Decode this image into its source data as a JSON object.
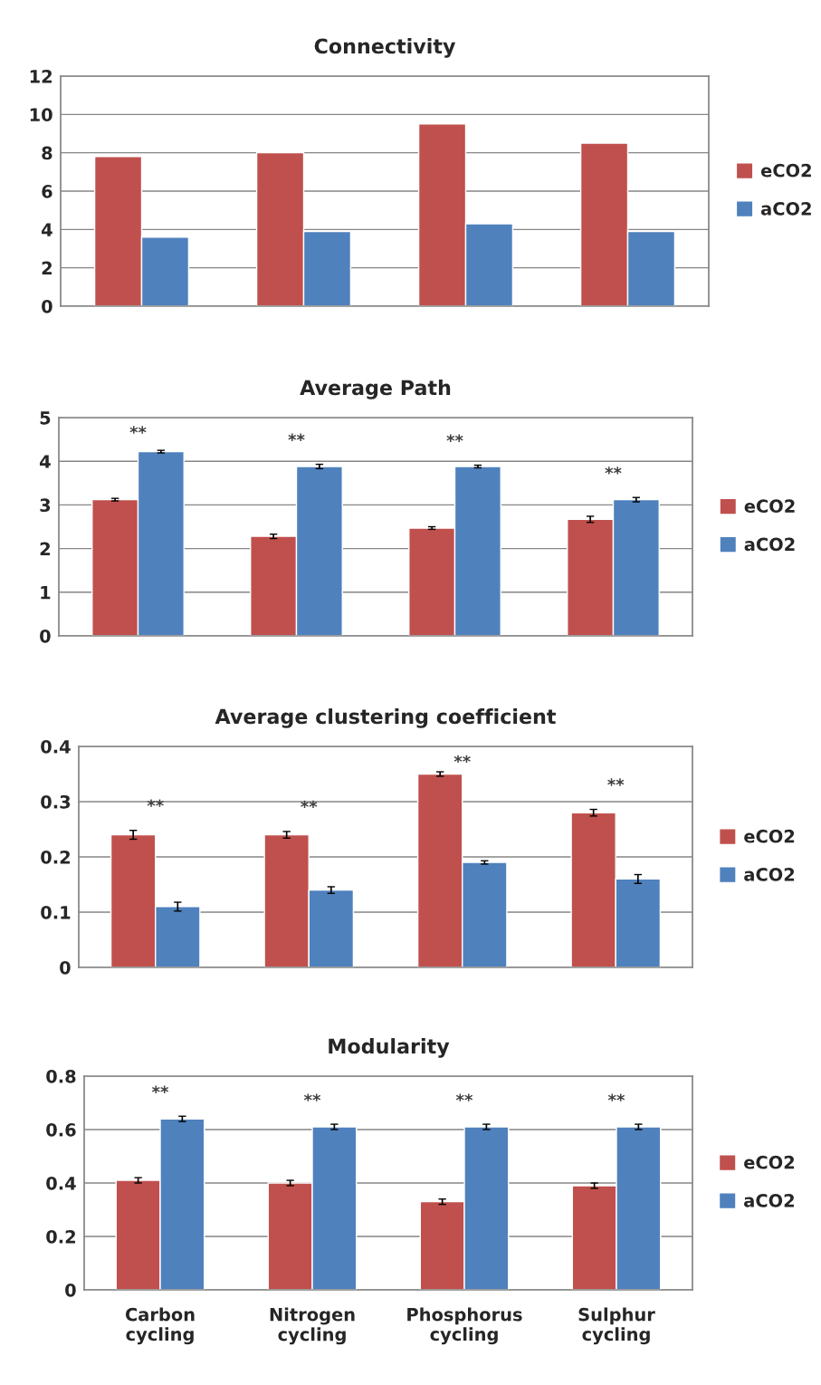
{
  "chart_data": [
    {
      "type": "bar",
      "title": "Connectivity",
      "categories": [
        null,
        null,
        null,
        null
      ],
      "series": [
        {
          "name": "eCO2",
          "color": "#c0504d",
          "values": [
            7.8,
            8.0,
            9.5,
            8.5
          ]
        },
        {
          "name": "aCO2",
          "color": "#4f81bd",
          "values": [
            3.6,
            3.9,
            4.3,
            3.9
          ]
        }
      ],
      "ylim": [
        0,
        12
      ],
      "yticks": [
        0,
        2,
        4,
        6,
        8,
        10,
        12
      ],
      "grid": "y",
      "legend": "right"
    },
    {
      "type": "bar",
      "title": "Average Path",
      "categories": [
        null,
        null,
        null,
        null
      ],
      "series": [
        {
          "name": "eCO2",
          "color": "#c0504d",
          "values": [
            3.12,
            2.28,
            2.47,
            2.67
          ],
          "errors": [
            0.03,
            0.05,
            0.03,
            0.07
          ]
        },
        {
          "name": "aCO2",
          "color": "#4f81bd",
          "values": [
            4.22,
            3.88,
            3.88,
            3.12
          ],
          "errors": [
            0.03,
            0.05,
            0.03,
            0.05
          ]
        }
      ],
      "ylim": [
        0,
        5
      ],
      "yticks": [
        0,
        1,
        2,
        3,
        4,
        5
      ],
      "grid": "y",
      "legend": "right",
      "annotations": [
        "**",
        "**",
        "**",
        "**"
      ]
    },
    {
      "type": "bar",
      "title": "Average clustering coefficient",
      "categories": [
        null,
        null,
        null,
        null
      ],
      "series": [
        {
          "name": "eCO2",
          "color": "#c0504d",
          "values": [
            0.24,
            0.24,
            0.35,
            0.28
          ],
          "errors": [
            0.008,
            0.006,
            0.004,
            0.006
          ]
        },
        {
          "name": "aCO2",
          "color": "#4f81bd",
          "values": [
            0.11,
            0.14,
            0.19,
            0.16
          ],
          "errors": [
            0.008,
            0.006,
            0.003,
            0.008
          ]
        }
      ],
      "ylim": [
        0,
        0.4
      ],
      "yticks": [
        0,
        0.1,
        0.2,
        0.3,
        0.4
      ],
      "grid": "y",
      "legend": "right",
      "annotations": [
        "**",
        "**",
        "**",
        "**"
      ]
    },
    {
      "type": "bar",
      "title": "Modularity",
      "categories": [
        "Carbon\ncycling",
        "Nitrogen\ncycling",
        "Phosphorus\ncycling",
        "Sulphur\ncycling"
      ],
      "series": [
        {
          "name": "eCO2",
          "color": "#c0504d",
          "values": [
            0.41,
            0.4,
            0.33,
            0.39
          ],
          "errors": [
            0.01,
            0.01,
            0.01,
            0.01
          ]
        },
        {
          "name": "aCO2",
          "color": "#4f81bd",
          "values": [
            0.64,
            0.61,
            0.61,
            0.61
          ],
          "errors": [
            0.01,
            0.01,
            0.01,
            0.01
          ]
        }
      ],
      "ylim": [
        0,
        0.8
      ],
      "yticks": [
        0,
        0.2,
        0.4,
        0.6,
        0.8
      ],
      "grid": "y",
      "legend": "right",
      "annotations": [
        "**",
        "**",
        "**",
        "**"
      ]
    }
  ]
}
